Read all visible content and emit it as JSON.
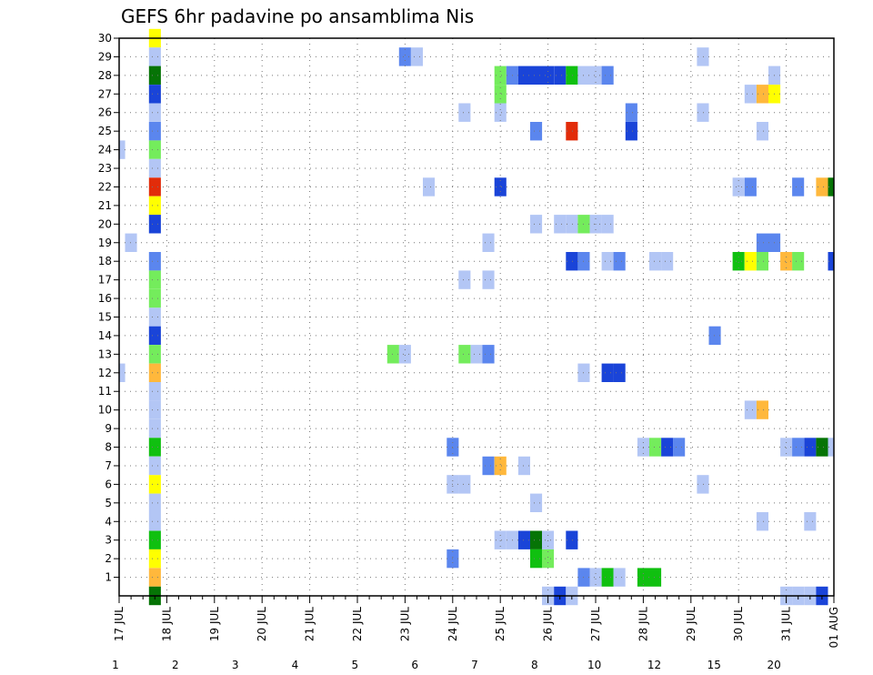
{
  "chart_data": {
    "type": "heatmap",
    "title": "GEFS 6hr padavine po ansamblima Nis",
    "y_tick_labels": [
      "1",
      "2",
      "3",
      "4",
      "5",
      "6",
      "7",
      "8",
      "9",
      "10",
      "11",
      "12",
      "13",
      "14",
      "15",
      "16",
      "17",
      "18",
      "19",
      "20",
      "21",
      "22",
      "23",
      "24",
      "25",
      "26",
      "27",
      "28",
      "29",
      "30"
    ],
    "x_tick_labels": [
      "17 JUL",
      "18 JUL",
      "19 JUL",
      "20 JUL",
      "21 JUL",
      "22 JUL",
      "23 JUL",
      "24 JUL",
      "25 JUL",
      "26 JUL",
      "27 JUL",
      "28 JUL",
      "29 JUL",
      "30 JUL",
      "31 JUL",
      "01 AUG"
    ],
    "x_range_days": [
      0,
      15
    ],
    "y_range_members": [
      0,
      30
    ],
    "grid": true,
    "time_step_hours": 6,
    "colorbar": {
      "levels": [
        "1",
        "2",
        "3",
        "4",
        "5",
        "6",
        "7",
        "8",
        "10",
        "12",
        "15",
        "20"
      ],
      "colors": [
        "#b3c6f5",
        "#5b86ee",
        "#1a44d8",
        "#74ec5c",
        "#10c010",
        "#067406",
        "#ffff00",
        "#ffb83c",
        "#ff8b1e",
        "#e22c0a",
        "#b01010",
        "#6a0a0a"
      ]
    },
    "cells": [
      {
        "member": 30,
        "day": 0.75,
        "bin": 6
      },
      {
        "member": 29,
        "day": 0.75,
        "bin": 0
      },
      {
        "member": 29,
        "day": 6,
        "bin": 1
      },
      {
        "member": 29,
        "day": 6.25,
        "bin": 0
      },
      {
        "member": 29,
        "day": 12.25,
        "bin": 0
      },
      {
        "member": 28,
        "day": 0.75,
        "bin": 5
      },
      {
        "member": 28,
        "day": 8,
        "bin": 3
      },
      {
        "member": 28,
        "day": 8.25,
        "bin": 1
      },
      {
        "member": 28,
        "day": 8.5,
        "bin": 2
      },
      {
        "member": 28,
        "day": 8.75,
        "bin": 2
      },
      {
        "member": 28,
        "day": 9,
        "bin": 2
      },
      {
        "member": 28,
        "day": 9.25,
        "bin": 2
      },
      {
        "member": 28,
        "day": 9.5,
        "bin": 4
      },
      {
        "member": 28,
        "day": 9.75,
        "bin": 0
      },
      {
        "member": 28,
        "day": 10,
        "bin": 0
      },
      {
        "member": 28,
        "day": 10.25,
        "bin": 1
      },
      {
        "member": 28,
        "day": 13.75,
        "bin": 0
      },
      {
        "member": 27,
        "day": 0.75,
        "bin": 2
      },
      {
        "member": 27,
        "day": 8,
        "bin": 3
      },
      {
        "member": 27,
        "day": 13.25,
        "bin": 0
      },
      {
        "member": 27,
        "day": 13.5,
        "bin": 7
      },
      {
        "member": 27,
        "day": 13.75,
        "bin": 6
      },
      {
        "member": 26,
        "day": 0.75,
        "bin": 0
      },
      {
        "member": 26,
        "day": 7.25,
        "bin": 0
      },
      {
        "member": 26,
        "day": 8,
        "bin": 0
      },
      {
        "member": 26,
        "day": 10.75,
        "bin": 1
      },
      {
        "member": 26,
        "day": 12.25,
        "bin": 0
      },
      {
        "member": 25,
        "day": 0.75,
        "bin": 1
      },
      {
        "member": 25,
        "day": 8.75,
        "bin": 1
      },
      {
        "member": 25,
        "day": 9.5,
        "bin": 9
      },
      {
        "member": 25,
        "day": 10.75,
        "bin": 2
      },
      {
        "member": 25,
        "day": 13.5,
        "bin": 0
      },
      {
        "member": 24,
        "day": 0,
        "bin": 0
      },
      {
        "member": 24,
        "day": 0.75,
        "bin": 3
      },
      {
        "member": 23,
        "day": 0.75,
        "bin": 0
      },
      {
        "member": 22,
        "day": 0.75,
        "bin": 9
      },
      {
        "member": 22,
        "day": 6.5,
        "bin": 0
      },
      {
        "member": 22,
        "day": 8,
        "bin": 2
      },
      {
        "member": 22,
        "day": 13,
        "bin": 0
      },
      {
        "member": 22,
        "day": 13.25,
        "bin": 1
      },
      {
        "member": 22,
        "day": 14.25,
        "bin": 1
      },
      {
        "member": 22,
        "day": 14.75,
        "bin": 7
      },
      {
        "member": 22,
        "day": 15,
        "bin": 5
      },
      {
        "member": 21,
        "day": 0.75,
        "bin": 6
      },
      {
        "member": 20,
        "day": 0.75,
        "bin": 2
      },
      {
        "member": 20,
        "day": 8.75,
        "bin": 0
      },
      {
        "member": 20,
        "day": 9.25,
        "bin": 0
      },
      {
        "member": 20,
        "day": 9.5,
        "bin": 0
      },
      {
        "member": 20,
        "day": 9.75,
        "bin": 3
      },
      {
        "member": 20,
        "day": 10,
        "bin": 0
      },
      {
        "member": 20,
        "day": 10.25,
        "bin": 0
      },
      {
        "member": 19,
        "day": 0.25,
        "bin": 0
      },
      {
        "member": 19,
        "day": 7.75,
        "bin": 0
      },
      {
        "member": 19,
        "day": 13.5,
        "bin": 1
      },
      {
        "member": 19,
        "day": 13.75,
        "bin": 1
      },
      {
        "member": 18,
        "day": 0.75,
        "bin": 1
      },
      {
        "member": 18,
        "day": 9.5,
        "bin": 2
      },
      {
        "member": 18,
        "day": 9.75,
        "bin": 1
      },
      {
        "member": 18,
        "day": 10.25,
        "bin": 0
      },
      {
        "member": 18,
        "day": 10.5,
        "bin": 1
      },
      {
        "member": 18,
        "day": 11.25,
        "bin": 0
      },
      {
        "member": 18,
        "day": 11.5,
        "bin": 0
      },
      {
        "member": 18,
        "day": 13,
        "bin": 4
      },
      {
        "member": 18,
        "day": 13.25,
        "bin": 6
      },
      {
        "member": 18,
        "day": 13.5,
        "bin": 3
      },
      {
        "member": 18,
        "day": 14,
        "bin": 7
      },
      {
        "member": 18,
        "day": 14.25,
        "bin": 3
      },
      {
        "member": 18,
        "day": 15,
        "bin": 2
      },
      {
        "member": 17,
        "day": 0.75,
        "bin": 3
      },
      {
        "member": 17,
        "day": 7.25,
        "bin": 0
      },
      {
        "member": 17,
        "day": 7.75,
        "bin": 0
      },
      {
        "member": 16,
        "day": 0.75,
        "bin": 3
      },
      {
        "member": 15,
        "day": 0.75,
        "bin": 0
      },
      {
        "member": 14,
        "day": 0.75,
        "bin": 2
      },
      {
        "member": 14,
        "day": 12.5,
        "bin": 1
      },
      {
        "member": 13,
        "day": 0.75,
        "bin": 3
      },
      {
        "member": 13,
        "day": 5.75,
        "bin": 3
      },
      {
        "member": 13,
        "day": 6,
        "bin": 0
      },
      {
        "member": 13,
        "day": 7.25,
        "bin": 3
      },
      {
        "member": 13,
        "day": 7.5,
        "bin": 0
      },
      {
        "member": 13,
        "day": 7.75,
        "bin": 1
      },
      {
        "member": 12,
        "day": 0,
        "bin": 0
      },
      {
        "member": 12,
        "day": 0.75,
        "bin": 7
      },
      {
        "member": 12,
        "day": 9.75,
        "bin": 0
      },
      {
        "member": 12,
        "day": 10.25,
        "bin": 2
      },
      {
        "member": 12,
        "day": 10.5,
        "bin": 2
      },
      {
        "member": 11,
        "day": 0.75,
        "bin": 0
      },
      {
        "member": 10,
        "day": 0.75,
        "bin": 0
      },
      {
        "member": 10,
        "day": 13.25,
        "bin": 0
      },
      {
        "member": 10,
        "day": 13.5,
        "bin": 7
      },
      {
        "member": 9,
        "day": 0.75,
        "bin": 0
      },
      {
        "member": 8,
        "day": 0.75,
        "bin": 4
      },
      {
        "member": 8,
        "day": 7,
        "bin": 1
      },
      {
        "member": 8,
        "day": 11,
        "bin": 0
      },
      {
        "member": 8,
        "day": 11.25,
        "bin": 3
      },
      {
        "member": 8,
        "day": 11.5,
        "bin": 2
      },
      {
        "member": 8,
        "day": 11.75,
        "bin": 1
      },
      {
        "member": 8,
        "day": 14,
        "bin": 0
      },
      {
        "member": 8,
        "day": 14.25,
        "bin": 1
      },
      {
        "member": 8,
        "day": 14.5,
        "bin": 2
      },
      {
        "member": 8,
        "day": 14.75,
        "bin": 5
      },
      {
        "member": 8,
        "day": 15,
        "bin": 0
      },
      {
        "member": 7,
        "day": 0.75,
        "bin": 0
      },
      {
        "member": 7,
        "day": 7.75,
        "bin": 1
      },
      {
        "member": 7,
        "day": 8,
        "bin": 7
      },
      {
        "member": 7,
        "day": 8.5,
        "bin": 0
      },
      {
        "member": 6,
        "day": 0.75,
        "bin": 6
      },
      {
        "member": 6,
        "day": 7,
        "bin": 0
      },
      {
        "member": 6,
        "day": 7.25,
        "bin": 0
      },
      {
        "member": 6,
        "day": 12.25,
        "bin": 0
      },
      {
        "member": 5,
        "day": 0.75,
        "bin": 0
      },
      {
        "member": 5,
        "day": 8.75,
        "bin": 0
      },
      {
        "member": 4,
        "day": 0.75,
        "bin": 0
      },
      {
        "member": 4,
        "day": 13.5,
        "bin": 0
      },
      {
        "member": 4,
        "day": 14.5,
        "bin": 0
      },
      {
        "member": 3,
        "day": 0.75,
        "bin": 4
      },
      {
        "member": 3,
        "day": 8,
        "bin": 0
      },
      {
        "member": 3,
        "day": 8.25,
        "bin": 0
      },
      {
        "member": 3,
        "day": 8.5,
        "bin": 2
      },
      {
        "member": 3,
        "day": 8.75,
        "bin": 5
      },
      {
        "member": 3,
        "day": 9,
        "bin": 0
      },
      {
        "member": 3,
        "day": 9.5,
        "bin": 2
      },
      {
        "member": 2,
        "day": 0.75,
        "bin": 6
      },
      {
        "member": 2,
        "day": 7,
        "bin": 1
      },
      {
        "member": 2,
        "day": 8.75,
        "bin": 4
      },
      {
        "member": 2,
        "day": 9,
        "bin": 3
      },
      {
        "member": 1,
        "day": 0.75,
        "bin": 7
      },
      {
        "member": 1,
        "day": 9.75,
        "bin": 1
      },
      {
        "member": 1,
        "day": 10,
        "bin": 0
      },
      {
        "member": 1,
        "day": 10.25,
        "bin": 4
      },
      {
        "member": 1,
        "day": 10.5,
        "bin": 0
      },
      {
        "member": 1,
        "day": 11,
        "bin": 4
      },
      {
        "member": 1,
        "day": 11.25,
        "bin": 4
      },
      {
        "member": 0,
        "day": 0.75,
        "bin": 5
      },
      {
        "member": 0,
        "day": 9,
        "bin": 0
      },
      {
        "member": 0,
        "day": 9.25,
        "bin": 2
      },
      {
        "member": 0,
        "day": 9.5,
        "bin": 0
      },
      {
        "member": 0,
        "day": 14,
        "bin": 0
      },
      {
        "member": 0,
        "day": 14.25,
        "bin": 0
      },
      {
        "member": 0,
        "day": 14.5,
        "bin": 0
      },
      {
        "member": 0,
        "day": 14.75,
        "bin": 2
      }
    ]
  }
}
